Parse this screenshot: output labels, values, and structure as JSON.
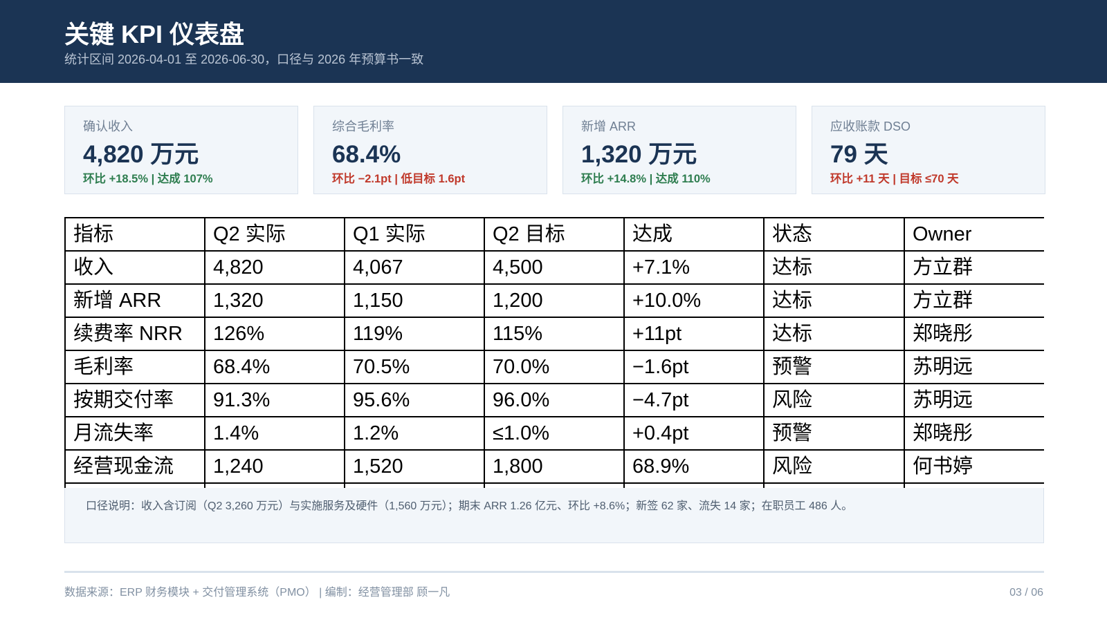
{
  "header": {
    "title": "关键 KPI 仪表盘",
    "subtitle": "统计区间 2026-04-01 至 2026-06-30，口径与 2026 年预算书一致"
  },
  "kpi_cards": [
    {
      "label": "确认收入",
      "value": "4,820 万元",
      "sub": "环比 +18.5% | 达成 107%",
      "tone": "good"
    },
    {
      "label": "综合毛利率",
      "value": "68.4%",
      "sub": "环比 −2.1pt | 低目标 1.6pt",
      "tone": "bad"
    },
    {
      "label": "新增 ARR",
      "value": "1,320 万元",
      "sub": "环比 +14.8% | 达成 110%",
      "tone": "good"
    },
    {
      "label": "应收账款 DSO",
      "value": "79 天",
      "sub": "环比 +11 天 | 目标 ≤70 天",
      "tone": "bad"
    }
  ],
  "table": {
    "headers": [
      "指标",
      "Q2 实际",
      "Q1 实际",
      "Q2 目标",
      "达成",
      "状态",
      "Owner"
    ],
    "rows": [
      [
        "收入",
        "4,820",
        "4,067",
        "4,500",
        "+7.1%",
        "达标",
        "方立群"
      ],
      [
        "新增 ARR",
        "1,320",
        "1,150",
        "1,200",
        "+10.0%",
        "达标",
        "方立群"
      ],
      [
        "续费率 NRR",
        "126%",
        "119%",
        "115%",
        "+11pt",
        "达标",
        "郑晓彤"
      ],
      [
        "毛利率",
        "68.4%",
        "70.5%",
        "70.0%",
        "−1.6pt",
        "预警",
        "苏明远"
      ],
      [
        "按期交付率",
        "91.3%",
        "95.6%",
        "96.0%",
        "−4.7pt",
        "风险",
        "苏明远"
      ],
      [
        "月流失率",
        "1.4%",
        "1.2%",
        "≤1.0%",
        "+0.4pt",
        "预警",
        "郑晓彤"
      ],
      [
        "经营现金流",
        "1,240",
        "1,520",
        "1,800",
        "68.9%",
        "风险",
        "何书婷"
      ],
      [
        "",
        "",
        "",
        "",
        "",
        "",
        ""
      ]
    ]
  },
  "note": "口径说明：收入含订阅（Q2 3,260 万元）与实施服务及硬件（1,560 万元）；期末 ARR 1.26 亿元、环比 +8.6%；新签 62 家、流失 14 家；在职员工 486 人。",
  "footer": {
    "source": "数据来源：ERP 财务模块 + 交付管理系统（PMO） | 编制：经营管理部 顾一凡",
    "page": "03 / 06"
  },
  "colors": {
    "header_bg": "#1b3454",
    "card_bg": "#f2f6fa",
    "good": "#2e7d4f",
    "bad": "#c0392b"
  }
}
